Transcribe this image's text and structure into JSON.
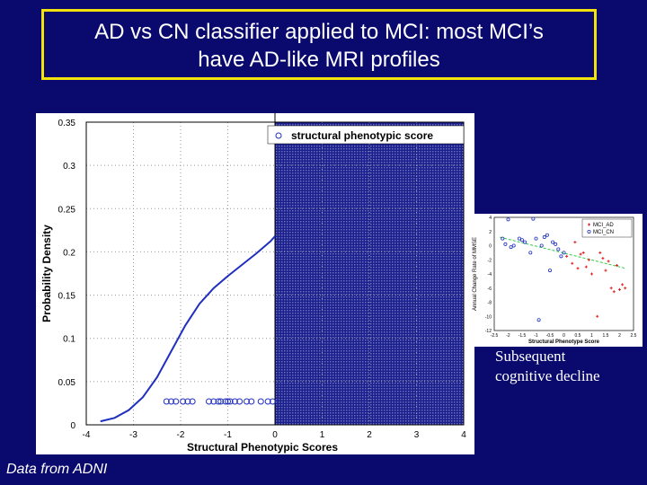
{
  "slide": {
    "title_line1": "AD vs CN classifier applied to MCI: most MCI’s",
    "title_line2": "have AD-like MRI profiles",
    "caption_line1": "Subsequent",
    "caption_line2": "cognitive decline",
    "source": "Data from ADNI"
  },
  "chart_data": [
    {
      "type": "line",
      "title": "",
      "xlabel": "Structural Phenotypic Scores",
      "ylabel": "Probability Density",
      "xlim": [
        -4,
        4
      ],
      "ylim": [
        0,
        0.35
      ],
      "xticks": [
        "-4",
        "-3",
        "-2",
        "-1",
        "0",
        "1",
        "2",
        "3",
        "4"
      ],
      "yticks": [
        "0",
        "0.05",
        "0.1",
        "0.15",
        "0.2",
        "0.25",
        "0.3",
        "0.35"
      ],
      "grid": true,
      "legend": "top-right",
      "legend_label": "structural phenotypic score",
      "line_color": "#1f2fbf",
      "highlight_region": {
        "x_from": 0,
        "x_to": 4
      },
      "series": [
        {
          "kind": "density",
          "x": [
            -3.7,
            -3.4,
            -3.1,
            -2.8,
            -2.5,
            -2.2,
            -1.9,
            -1.6,
            -1.3,
            -1.0,
            -0.7,
            -0.4,
            -0.1,
            0.0
          ],
          "y": [
            0.004,
            0.008,
            0.017,
            0.032,
            0.055,
            0.085,
            0.115,
            0.14,
            0.158,
            0.172,
            0.185,
            0.198,
            0.212,
            0.218
          ]
        },
        {
          "kind": "points",
          "y_level": 0.027,
          "x": [
            -2.3,
            -2.2,
            -2.1,
            -1.95,
            -1.85,
            -1.75,
            -1.4,
            -1.3,
            -1.2,
            -1.15,
            -1.05,
            -1.0,
            -0.95,
            -0.85,
            -0.75,
            -0.6,
            -0.5,
            -0.3,
            -0.15,
            -0.05
          ]
        }
      ]
    },
    {
      "type": "scatter",
      "title": "",
      "xlabel": "Structural Phenotype Score",
      "ylabel": "Annual Change Rate of MMSE",
      "xlim": [
        -2.5,
        2.5
      ],
      "ylim": [
        -12,
        4
      ],
      "xticks": [
        "-2.5",
        "-2",
        "-1.5",
        "-1",
        "-0.5",
        "0",
        "0.5",
        "1",
        "1.5",
        "2",
        "2.5"
      ],
      "yticks": [
        "4",
        "2",
        "0",
        "-2",
        "-4",
        "-6",
        "-8",
        "-10",
        "-12"
      ],
      "legend": "top-right",
      "trendline": {
        "x": [
          -2.3,
          2.2
        ],
        "y": [
          1.2,
          -3.2
        ],
        "color": "#2ecc40"
      },
      "series": [
        {
          "name": "MCI_AD",
          "color": "#e02020",
          "x": [
            0.1,
            0.3,
            0.5,
            0.7,
            0.9,
            1.0,
            1.2,
            1.4,
            1.5,
            1.7,
            1.9,
            2.0,
            2.1,
            0.4,
            0.8,
            1.3,
            1.6,
            1.8,
            2.2,
            0.6
          ],
          "y": [
            -1.5,
            -2.5,
            -3.2,
            -1.0,
            -2.0,
            -4.0,
            -10.0,
            -1.8,
            -3.5,
            -6.0,
            -2.8,
            -6.2,
            -5.5,
            0.5,
            -3.0,
            -1.0,
            -2.2,
            -6.5,
            -6.0,
            -1.2
          ]
        },
        {
          "name": "MCI_CN",
          "color": "#2030c0",
          "x": [
            -2.2,
            -2.1,
            -2.0,
            -1.8,
            -1.6,
            -1.5,
            -1.2,
            -1.0,
            -0.8,
            -0.6,
            -0.5,
            -0.4,
            -0.3,
            -0.2,
            0.0,
            -1.4,
            -0.9,
            -0.7,
            -0.1,
            -1.1,
            -1.9
          ],
          "y": [
            1.0,
            0.2,
            3.7,
            0.0,
            1.0,
            0.8,
            -1.0,
            1.0,
            0.0,
            1.5,
            -3.5,
            0.5,
            0.2,
            -0.5,
            -1.0,
            0.5,
            -10.5,
            1.2,
            -1.5,
            3.8,
            -0.2
          ]
        }
      ]
    }
  ]
}
